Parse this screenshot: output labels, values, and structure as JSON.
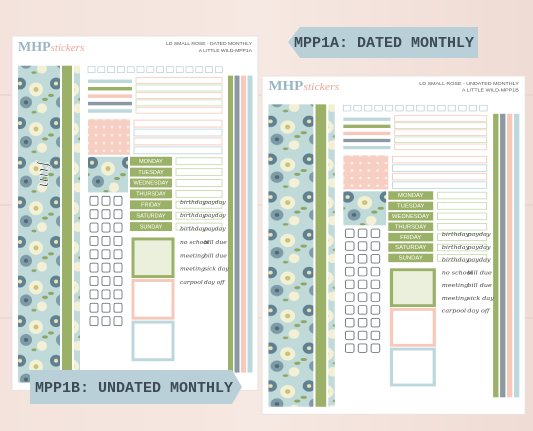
{
  "banners": {
    "dated": "MPP1A: DATED MONTHLY",
    "undated": "MPP1B: UNDATED MONTHLY"
  },
  "sheets": [
    {
      "brand": "MHP",
      "brand_suffix": "stickers",
      "line1": "LD SMALL ROSE - DATED MONTHLY",
      "line2": "A LITTLE WILD-MPP1A",
      "script": "fun",
      "words": [
        [
          "birthday",
          "payday"
        ],
        [
          "birthday",
          "payday"
        ],
        [
          "birthday",
          "payday"
        ],
        [
          "no school",
          "bill due"
        ],
        [
          "meeting",
          "bill due"
        ],
        [
          "meeting",
          "sick day"
        ],
        [
          "carpool",
          "day off"
        ]
      ]
    },
    {
      "brand": "MHP",
      "brand_suffix": "stickers",
      "line1": "LD SMALL ROSE - UNDATED MONTHLY",
      "line2": "A LITTLE WILD-MPP1B",
      "words": [
        [
          "birthday",
          "payday"
        ],
        [
          "birthday",
          "payday"
        ],
        [
          "birthday",
          "payday"
        ],
        [
          "no school",
          "bill due"
        ],
        [
          "meeting",
          "bill due"
        ],
        [
          "meeting",
          "sick day"
        ],
        [
          "carpool",
          "day off"
        ]
      ]
    }
  ],
  "weekdays": [
    "MONDAY",
    "TUESDAY",
    "WEDNESDAY",
    "THURSDAY",
    "FRIDAY",
    "SATURDAY",
    "SUNDAY"
  ]
}
